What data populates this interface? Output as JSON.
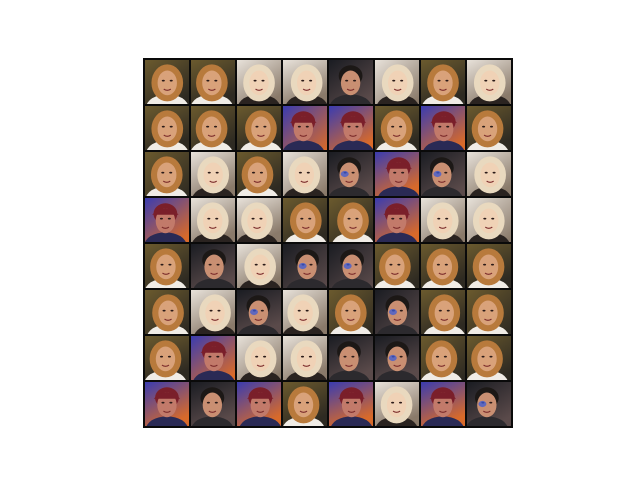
{
  "grid": {
    "rows": 8,
    "cols": 8,
    "tiles": [
      [
        "blonde-woman",
        "blonde-woman",
        "pale-blonde",
        "pale-blonde",
        "dark-man",
        "pale-blonde",
        "blonde-woman",
        "pale-blonde"
      ],
      [
        "blonde-woman",
        "blonde-woman",
        "blonde-woman",
        "cap-person",
        "cap-person",
        "blonde-woman",
        "cap-person",
        "blonde-woman"
      ],
      [
        "blonde-woman",
        "pale-blonde",
        "blonde-woman",
        "pale-blonde",
        "dark-man",
        "cap-person",
        "dark-man",
        "pale-blonde"
      ],
      [
        "cap-person",
        "pale-blonde",
        "pale-blonde",
        "blonde-woman",
        "blonde-woman",
        "cap-person",
        "pale-blonde",
        "pale-blonde"
      ],
      [
        "blonde-woman",
        "dark-man",
        "pale-blonde",
        "dark-man",
        "dark-man",
        "blonde-woman",
        "blonde-woman",
        "blonde-woman"
      ],
      [
        "blonde-woman",
        "pale-blonde",
        "dark-man",
        "pale-blonde",
        "blonde-woman",
        "dark-man",
        "blonde-woman",
        "blonde-woman"
      ],
      [
        "blonde-woman",
        "cap-person",
        "pale-blonde",
        "pale-blonde",
        "dark-man",
        "dark-man",
        "blonde-woman",
        "blonde-woman"
      ],
      [
        "cap-person",
        "dark-man",
        "cap-person",
        "blonde-woman",
        "cap-person",
        "pale-blonde",
        "cap-person",
        "dark-man"
      ]
    ]
  },
  "palettes": {
    "blonde-woman": {
      "bg1": "#6b5a2e",
      "bg2": "#2e2a22",
      "hair": "#b87a3c",
      "skin": "#d9a27a",
      "shirt": "#f0ece6"
    },
    "pale-blonde": {
      "bg1": "#e8e2da",
      "bg2": "#8a7a6a",
      "hair": "#e9d9bf",
      "skin": "#f0d2b6",
      "shirt": "#2a2320"
    },
    "dark-man": {
      "bg1": "#1a1c22",
      "bg2": "#5a4a4a",
      "hair": "#1c1816",
      "skin": "#c98f72",
      "shirt": "#2c2a2e"
    },
    "cap-person": {
      "bg1": "#3a3cb0",
      "bg2": "#d86a2a",
      "hair": "#7a1f2a",
      "skin": "#c27a6a",
      "shirt": "#2a2a55"
    }
  }
}
